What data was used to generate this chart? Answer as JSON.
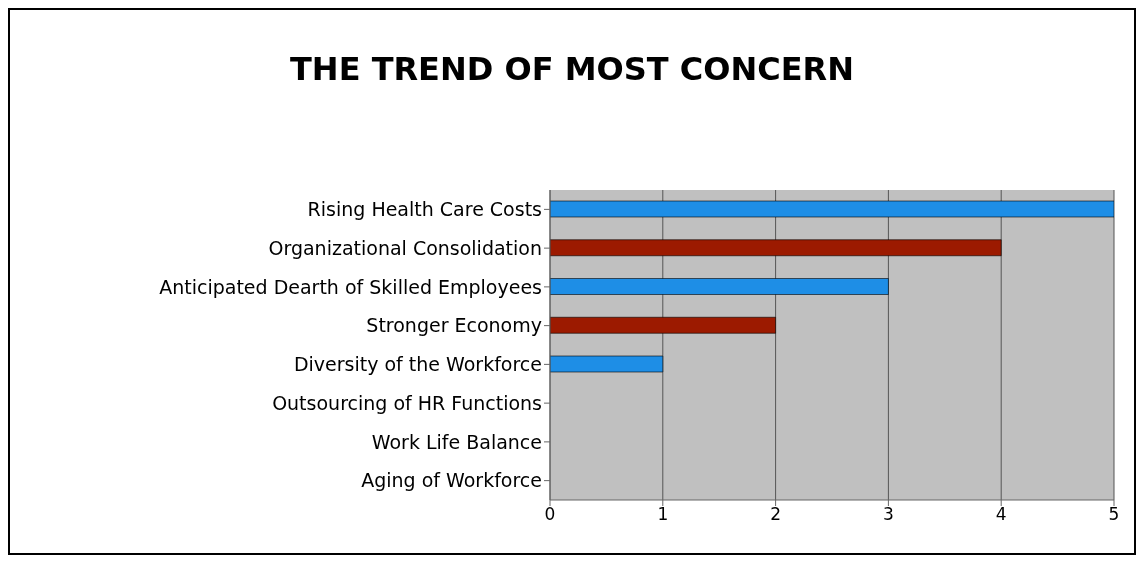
{
  "chart_data": {
    "type": "bar",
    "orientation": "horizontal",
    "title": "THE TREND OF MOST CONCERN",
    "categories": [
      "Rising Health Care Costs",
      "Organizational Consolidation",
      "Anticipated Dearth of Skilled Employees",
      "Stronger Economy",
      "Diversity of the Workforce",
      "Outsourcing of HR Functions",
      "Work Life Balance",
      "Aging of Workforce"
    ],
    "values": [
      5,
      4,
      3,
      2,
      1,
      0,
      0,
      0
    ],
    "colors": [
      "#1e8ee6",
      "#9c1a00",
      "#1e8ee6",
      "#9c1a00",
      "#1e8ee6",
      "#6f6fc0",
      "#6f6fc0",
      "#6f6fc0"
    ],
    "xlim": [
      0,
      5
    ],
    "xticks": [
      0,
      1,
      2,
      3,
      4,
      5
    ],
    "grid": "x"
  }
}
